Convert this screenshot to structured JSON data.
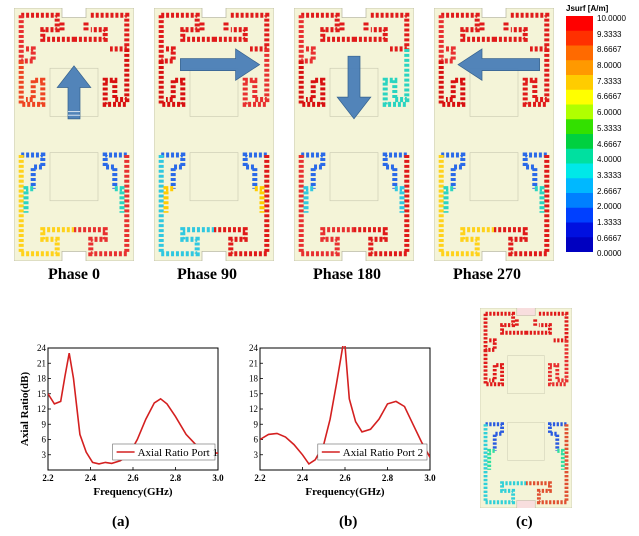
{
  "phases": [
    {
      "label": "Phase 0",
      "arrow": "up"
    },
    {
      "label": "Phase 90",
      "arrow": "right"
    },
    {
      "label": "Phase 180",
      "arrow": "down"
    },
    {
      "label": "Phase 270",
      "arrow": "left"
    }
  ],
  "legend": {
    "title": "Jsurf [A/m]",
    "ticks": [
      "10.0000",
      "9.3333",
      "8.6667",
      "8.0000",
      "7.3333",
      "6.6667",
      "6.0000",
      "5.3333",
      "4.6667",
      "4.0000",
      "3.3333",
      "2.6667",
      "2.0000",
      "1.3333",
      "0.6667",
      "0.0000"
    ],
    "colors": [
      "#ff0000",
      "#ff3000",
      "#ff6a00",
      "#ff9900",
      "#ffcc00",
      "#ffff00",
      "#b0ff00",
      "#33e000",
      "#00d040",
      "#00e0a0",
      "#00e8e8",
      "#00b8ff",
      "#0080ff",
      "#0040ff",
      "#0010e0",
      "#0000c0"
    ]
  },
  "captions": {
    "a": "(a)",
    "b": "(b)",
    "c": "(c)"
  },
  "chart_data": [
    {
      "type": "line",
      "xlabel": "Frequency(GHz)",
      "ylabel": "Axial Ratio(dB)",
      "xlim": [
        2.2,
        3.0
      ],
      "ylim": [
        0,
        24
      ],
      "xticks": [
        "2.2",
        "2.4",
        "2.6",
        "2.8",
        "3.0"
      ],
      "yticks": [
        "3",
        "6",
        "9",
        "12",
        "15",
        "18",
        "21",
        "24"
      ],
      "color": "#d42020",
      "series": [
        {
          "name": "Axial Ratio Port 1",
          "x": [
            2.2,
            2.23,
            2.26,
            2.28,
            2.3,
            2.32,
            2.35,
            2.38,
            2.41,
            2.44,
            2.47,
            2.5,
            2.54,
            2.58,
            2.62,
            2.66,
            2.7,
            2.73,
            2.76,
            2.8,
            2.85,
            2.9,
            2.95,
            3.0
          ],
          "y": [
            15.0,
            13.0,
            13.5,
            18.5,
            23.0,
            18.0,
            7.0,
            3.5,
            1.5,
            1.2,
            1.5,
            1.3,
            1.8,
            3.0,
            6.0,
            10.0,
            13.2,
            14.0,
            13.0,
            10.5,
            7.0,
            4.8,
            3.5,
            3.3
          ]
        }
      ]
    },
    {
      "type": "line",
      "xlabel": "Frequency(GHz)",
      "ylabel": "Axial Ratio(dB)",
      "xlim": [
        2.2,
        3.0
      ],
      "ylim": [
        0,
        24
      ],
      "xticks": [
        "2.2",
        "2.4",
        "2.6",
        "2.8",
        "3.0"
      ],
      "yticks": [
        "3",
        "6",
        "9",
        "12",
        "15",
        "18",
        "21",
        "24"
      ],
      "color": "#d42020",
      "series": [
        {
          "name": "Axial Ratio Port 2",
          "x": [
            2.2,
            2.24,
            2.28,
            2.32,
            2.36,
            2.4,
            2.43,
            2.46,
            2.5,
            2.53,
            2.56,
            2.58,
            2.59,
            2.6,
            2.62,
            2.65,
            2.68,
            2.72,
            2.76,
            2.8,
            2.84,
            2.88,
            2.92,
            2.96,
            3.0
          ],
          "y": [
            6.0,
            7.0,
            7.2,
            6.5,
            5.0,
            3.0,
            1.2,
            2.0,
            5.0,
            10.0,
            17.0,
            22.0,
            24.5,
            24.5,
            14.0,
            9.5,
            7.5,
            8.0,
            10.0,
            13.0,
            13.5,
            12.5,
            9.0,
            5.5,
            2.5
          ]
        }
      ]
    }
  ]
}
